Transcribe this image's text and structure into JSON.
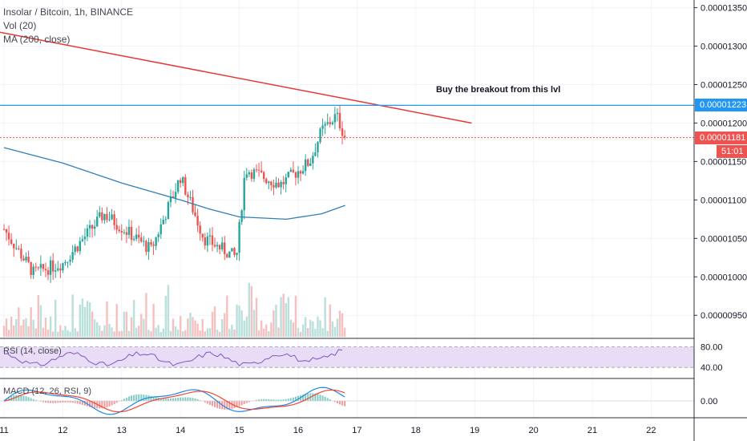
{
  "legend": {
    "symbol_line": "Insolar / Bitcoin, 1h, BINANCE",
    "volume_line": "Vol (20)",
    "ma_line": "MA (200, close)"
  },
  "annotation": "Buy the breakout from this lvl",
  "price_tags": {
    "resistance": "0.00001223",
    "last_price": "0.00001181",
    "countdown": "51:01"
  },
  "rsi_panel": {
    "title": "RSI (14, close)",
    "ticks": [
      "80.00",
      "40.00"
    ]
  },
  "macd_panel": {
    "title": "MACD (12, 26, RSI, 9)",
    "ticks": [
      "0.00"
    ]
  },
  "colors": {
    "up": "#26a69a",
    "down": "#ef5350",
    "ma": "#2f7fb8",
    "trendline": "#e53935",
    "resistance": "#2196f3",
    "last_price": "#ef5350",
    "rsi_band": "#e9dcf7",
    "rsi_line": "#7e57c2",
    "macd_line": "#1e88e5",
    "signal_line": "#f44336"
  },
  "chart_data": {
    "type": "candlestick",
    "y_axis_ticks": [
      "0.00001350",
      "0.00001300",
      "0.00001250",
      "0.00001200",
      "0.00001150",
      "0.00001100",
      "0.00001050",
      "0.00001000",
      "0.00000950"
    ],
    "x_axis_ticks": [
      "11",
      "12",
      "13",
      "14",
      "15",
      "16",
      "17",
      "18",
      "19",
      "20",
      "21",
      "22"
    ],
    "ylim": [
      9.2e-06,
      1.36e-05
    ],
    "resistance_level": 1.223e-05,
    "last_price": 1.181e-05,
    "key_points": [
      {
        "day": 11.0,
        "price": 1.062e-05
      },
      {
        "day": 11.5,
        "price": 1.005e-05
      },
      {
        "day": 12.0,
        "price": 1.018e-05
      },
      {
        "day": 12.7,
        "price": 1.082e-05
      },
      {
        "day": 13.5,
        "price": 1.035e-05
      },
      {
        "day": 14.0,
        "price": 1.13e-05
      },
      {
        "day": 14.4,
        "price": 1.05e-05
      },
      {
        "day": 14.95,
        "price": 1.025e-05
      },
      {
        "day": 15.1,
        "price": 1.14e-05
      },
      {
        "day": 15.7,
        "price": 1.12e-05
      },
      {
        "day": 16.2,
        "price": 1.15e-05
      },
      {
        "day": 16.4,
        "price": 1.19e-05
      },
      {
        "day": 16.65,
        "price": 1.21e-05
      },
      {
        "day": 16.8,
        "price": 1.181e-05
      }
    ],
    "moving_average": [
      {
        "day": 11.0,
        "price": 1.168e-05
      },
      {
        "day": 12.0,
        "price": 1.148e-05
      },
      {
        "day": 13.0,
        "price": 1.122e-05
      },
      {
        "day": 14.0,
        "price": 1.1e-05
      },
      {
        "day": 14.5,
        "price": 1.088e-05
      },
      {
        "day": 15.0,
        "price": 1.078e-05
      },
      {
        "day": 15.8,
        "price": 1.075e-05
      },
      {
        "day": 16.4,
        "price": 1.082e-05
      },
      {
        "day": 16.8,
        "price": 1.093e-05
      }
    ],
    "trendline": [
      {
        "day": 11.0,
        "price": 1.318e-05
      },
      {
        "day": 18.95,
        "price": 1.2e-05
      }
    ],
    "rsi_ylim": [
      20,
      95
    ],
    "rsi_band": [
      40,
      80
    ]
  }
}
